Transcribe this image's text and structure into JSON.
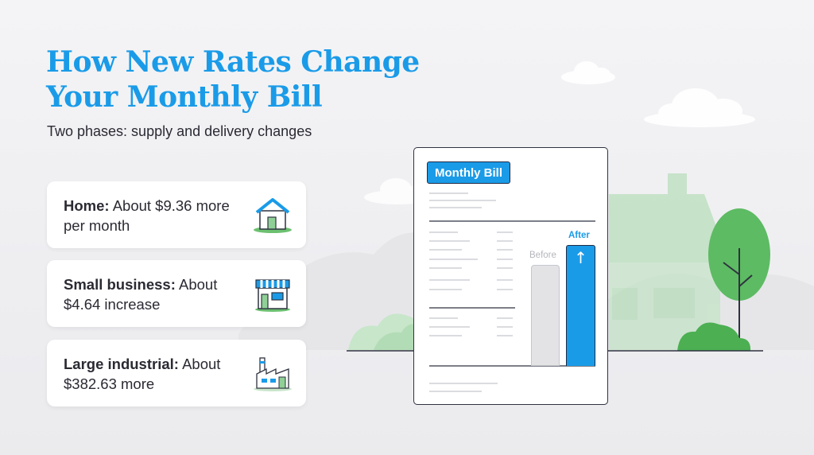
{
  "title": "How New Rates Change Your Monthly Bill",
  "subtitle": "Two phases: supply and delivery changes",
  "cards": [
    {
      "label": "Home:",
      "text": "About $9.36 more per month",
      "icon": "house-icon"
    },
    {
      "label": "Small business:",
      "text": "About $4.64 increase",
      "icon": "storefront-icon"
    },
    {
      "label": "Large industrial:",
      "text": "About $382.63 more",
      "icon": "factory-icon"
    }
  ],
  "bill": {
    "badge": "Monthly Bill",
    "before_label": "Before",
    "after_label": "After",
    "after_arrow": "↑"
  },
  "colors": {
    "accent": "#1a9be8",
    "text": "#2a2a33",
    "green": "#5dbb63",
    "bar_before": "#e3e3e6"
  }
}
